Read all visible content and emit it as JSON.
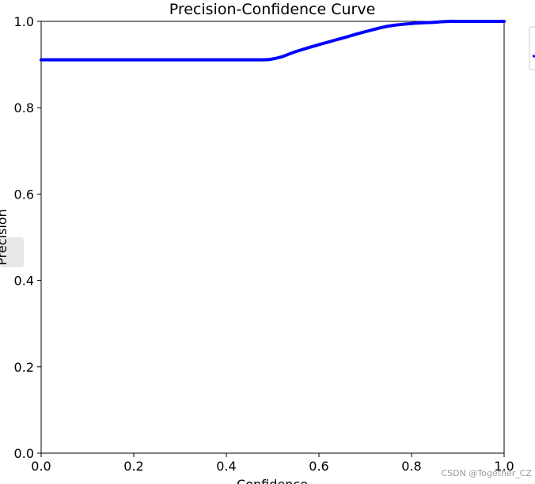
{
  "chart_data": {
    "type": "line",
    "title": "Precision-Confidence Curve",
    "xlabel": "Confidence",
    "ylabel": "Precision",
    "xlim": [
      0,
      1
    ],
    "ylim": [
      0,
      1
    ],
    "xticks": [
      "0.0",
      "0.2",
      "0.4",
      "0.6",
      "0.8",
      "1.0"
    ],
    "yticks": [
      "0.0",
      "0.2",
      "0.4",
      "0.6",
      "0.8",
      "1.0"
    ],
    "grid": false,
    "legend_placement": "top-right (clipped)",
    "series": [
      {
        "color": "#0000ff",
        "x": [
          0.0,
          0.1,
          0.2,
          0.3,
          0.4,
          0.48,
          0.5,
          0.52,
          0.55,
          0.6,
          0.65,
          0.7,
          0.75,
          0.8,
          0.85,
          0.88,
          0.9,
          0.95,
          1.0
        ],
        "y": [
          0.911,
          0.911,
          0.911,
          0.911,
          0.911,
          0.911,
          0.913,
          0.918,
          0.93,
          0.946,
          0.961,
          0.976,
          0.989,
          0.995,
          0.998,
          1.0,
          1.0,
          1.0,
          1.0
        ]
      }
    ]
  },
  "watermark": "CSDN @Together_CZ",
  "colors": {
    "line": "#0000ff",
    "axes": "#000000",
    "legend_border": "#cccccc",
    "side_tab": "#e8e8e8"
  }
}
